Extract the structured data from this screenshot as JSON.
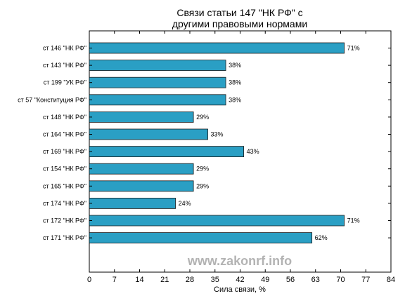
{
  "chart_data": {
    "type": "bar",
    "orientation": "horizontal",
    "title_lines": [
      "Связи статьи 147 \"НК РФ\" с",
      "другими правовыми нормами"
    ],
    "xlabel": "Сила связи, %",
    "xlim": [
      0,
      84
    ],
    "xticks": [
      0,
      7,
      14,
      21,
      28,
      35,
      42,
      49,
      56,
      63,
      70,
      77,
      84
    ],
    "categories": [
      "ст 146 \"НК РФ\"",
      "ст 143 \"НК РФ\"",
      "ст 199 \"УК РФ\"",
      "ст 57 \"Конституция РФ\"",
      "ст 148 \"НК РФ\"",
      "ст 164 \"НК РФ\"",
      "ст 169 \"НК РФ\"",
      "ст 154 \"НК РФ\"",
      "ст 165 \"НК РФ\"",
      "ст 174 \"НК РФ\"",
      "ст 172 \"НК РФ\"",
      "ст 171 \"НК РФ\""
    ],
    "values": [
      71,
      38,
      38,
      38,
      29,
      33,
      43,
      29,
      29,
      24,
      71,
      62
    ],
    "value_labels": [
      "71%",
      "38%",
      "38%",
      "38%",
      "29%",
      "33%",
      "43%",
      "29%",
      "29%",
      "24%",
      "71%",
      "62%"
    ],
    "bar_color": "#2a9fc4",
    "grid": false,
    "watermark": "www.zakonrf.info"
  }
}
